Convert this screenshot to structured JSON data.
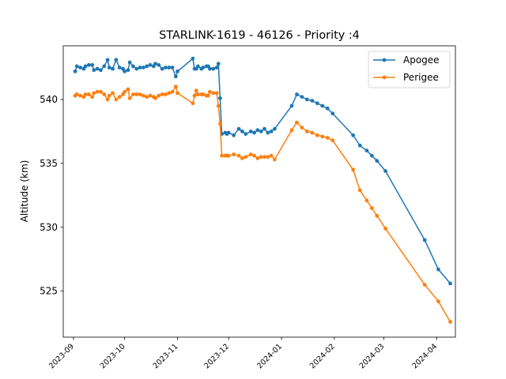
{
  "chart_data": {
    "type": "line",
    "title": "STARLINK-1619 - 46126 - Priority :4",
    "xlabel": "",
    "ylabel": "Altitude (km)",
    "xlim": [
      "2023-08-26",
      "2024-04-12"
    ],
    "ylim": [
      521.4,
      544.2
    ],
    "xticks": [
      "2023-09",
      "2023-10",
      "2023-11",
      "2023-12",
      "2024-01",
      "2024-02",
      "2024-03",
      "2024-04"
    ],
    "yticks": [
      525,
      530,
      535,
      540
    ],
    "grid": false,
    "legend_position": "top-right",
    "series": [
      {
        "name": "Apogee",
        "color": "#1f77b4",
        "points": [
          [
            "2023-09-02",
            542.2
          ],
          [
            "2023-09-03",
            542.6
          ],
          [
            "2023-09-05",
            542.5
          ],
          [
            "2023-09-07",
            542.4
          ],
          [
            "2023-09-08",
            542.6
          ],
          [
            "2023-09-10",
            542.7
          ],
          [
            "2023-09-12",
            542.7
          ],
          [
            "2023-09-13",
            542.3
          ],
          [
            "2023-09-15",
            542.4
          ],
          [
            "2023-09-17",
            542.3
          ],
          [
            "2023-09-19",
            542.6
          ],
          [
            "2023-09-21",
            543.1
          ],
          [
            "2023-09-22",
            542.5
          ],
          [
            "2023-09-24",
            542.4
          ],
          [
            "2023-09-26",
            543.1
          ],
          [
            "2023-09-28",
            542.5
          ],
          [
            "2023-09-30",
            542.4
          ],
          [
            "2023-10-01",
            542.2
          ],
          [
            "2023-10-03",
            542.3
          ],
          [
            "2023-10-04",
            542.9
          ],
          [
            "2023-10-06",
            542.6
          ],
          [
            "2023-10-08",
            542.4
          ],
          [
            "2023-10-10",
            542.5
          ],
          [
            "2023-10-12",
            542.5
          ],
          [
            "2023-10-14",
            542.6
          ],
          [
            "2023-10-16",
            542.7
          ],
          [
            "2023-10-18",
            542.6
          ],
          [
            "2023-10-19",
            542.8
          ],
          [
            "2023-10-21",
            542.7
          ],
          [
            "2023-10-23",
            542.4
          ],
          [
            "2023-10-25",
            542.5
          ],
          [
            "2023-10-27",
            542.5
          ],
          [
            "2023-10-29",
            542.5
          ],
          [
            "2023-10-31",
            541.8
          ],
          [
            "2023-11-01",
            542.2
          ],
          [
            "2023-11-10",
            543.2
          ],
          [
            "2023-11-11",
            542.4
          ],
          [
            "2023-11-12",
            542.4
          ],
          [
            "2023-11-13",
            542.6
          ],
          [
            "2023-11-15",
            542.4
          ],
          [
            "2023-11-16",
            542.5
          ],
          [
            "2023-11-18",
            542.6
          ],
          [
            "2023-11-19",
            542.6
          ],
          [
            "2023-11-20",
            542.4
          ],
          [
            "2023-11-22",
            542.4
          ],
          [
            "2023-11-24",
            542.5
          ],
          [
            "2023-11-25",
            542.8
          ],
          [
            "2023-11-26",
            540.1
          ],
          [
            "2023-11-27",
            537.3
          ],
          [
            "2023-11-29",
            537.4
          ],
          [
            "2023-11-30",
            537.3
          ],
          [
            "2023-12-01",
            537.4
          ],
          [
            "2023-12-04",
            537.2
          ],
          [
            "2023-12-07",
            537.7
          ],
          [
            "2023-12-09",
            537.5
          ],
          [
            "2023-12-11",
            537.3
          ],
          [
            "2023-12-14",
            537.5
          ],
          [
            "2023-12-16",
            537.4
          ],
          [
            "2023-12-18",
            537.6
          ],
          [
            "2023-12-20",
            537.5
          ],
          [
            "2023-12-22",
            537.7
          ],
          [
            "2023-12-24",
            537.4
          ],
          [
            "2023-12-26",
            537.5
          ],
          [
            "2023-12-28",
            537.7
          ],
          [
            "2024-01-07",
            539.5
          ],
          [
            "2024-01-10",
            540.4
          ],
          [
            "2024-01-13",
            540.2
          ],
          [
            "2024-01-16",
            540.0
          ],
          [
            "2024-01-19",
            539.9
          ],
          [
            "2024-01-22",
            539.7
          ],
          [
            "2024-01-25",
            539.5
          ],
          [
            "2024-01-28",
            539.3
          ],
          [
            "2024-01-31",
            538.9
          ],
          [
            "2024-02-12",
            537.2
          ],
          [
            "2024-02-16",
            536.4
          ],
          [
            "2024-02-20",
            536.0
          ],
          [
            "2024-02-23",
            535.6
          ],
          [
            "2024-02-26",
            535.2
          ],
          [
            "2024-03-02",
            534.4
          ],
          [
            "2024-03-25",
            529.0
          ],
          [
            "2024-04-02",
            526.7
          ],
          [
            "2024-04-09",
            525.6
          ]
        ]
      },
      {
        "name": "Perigee",
        "color": "#ff7f0e",
        "points": [
          [
            "2023-09-02",
            540.3
          ],
          [
            "2023-09-03",
            540.4
          ],
          [
            "2023-09-05",
            540.3
          ],
          [
            "2023-09-07",
            540.2
          ],
          [
            "2023-09-08",
            540.4
          ],
          [
            "2023-09-10",
            540.4
          ],
          [
            "2023-09-12",
            540.2
          ],
          [
            "2023-09-13",
            540.5
          ],
          [
            "2023-09-15",
            540.6
          ],
          [
            "2023-09-17",
            540.6
          ],
          [
            "2023-09-19",
            540.4
          ],
          [
            "2023-09-21",
            540.0
          ],
          [
            "2023-09-22",
            540.3
          ],
          [
            "2023-09-24",
            540.5
          ],
          [
            "2023-09-26",
            540.0
          ],
          [
            "2023-09-28",
            540.2
          ],
          [
            "2023-09-30",
            540.4
          ],
          [
            "2023-10-01",
            540.6
          ],
          [
            "2023-10-03",
            540.8
          ],
          [
            "2023-10-04",
            540.1
          ],
          [
            "2023-10-06",
            540.4
          ],
          [
            "2023-10-08",
            540.4
          ],
          [
            "2023-10-10",
            540.4
          ],
          [
            "2023-10-12",
            540.3
          ],
          [
            "2023-10-14",
            540.2
          ],
          [
            "2023-10-16",
            540.3
          ],
          [
            "2023-10-18",
            540.2
          ],
          [
            "2023-10-19",
            540.1
          ],
          [
            "2023-10-21",
            540.3
          ],
          [
            "2023-10-23",
            540.4
          ],
          [
            "2023-10-25",
            540.4
          ],
          [
            "2023-10-27",
            540.5
          ],
          [
            "2023-10-29",
            540.6
          ],
          [
            "2023-10-31",
            541.0
          ],
          [
            "2023-11-01",
            540.5
          ],
          [
            "2023-11-10",
            539.7
          ],
          [
            "2023-11-11",
            540.3
          ],
          [
            "2023-11-12",
            540.7
          ],
          [
            "2023-11-13",
            540.4
          ],
          [
            "2023-11-15",
            540.4
          ],
          [
            "2023-11-16",
            540.4
          ],
          [
            "2023-11-18",
            540.3
          ],
          [
            "2023-11-19",
            540.3
          ],
          [
            "2023-11-20",
            540.6
          ],
          [
            "2023-11-22",
            540.5
          ],
          [
            "2023-11-24",
            540.5
          ],
          [
            "2023-11-25",
            539.5
          ],
          [
            "2023-11-26",
            538.1
          ],
          [
            "2023-11-27",
            535.6
          ],
          [
            "2023-11-29",
            535.6
          ],
          [
            "2023-11-30",
            535.6
          ],
          [
            "2023-12-01",
            535.6
          ],
          [
            "2023-12-04",
            535.7
          ],
          [
            "2023-12-07",
            535.6
          ],
          [
            "2023-12-09",
            535.4
          ],
          [
            "2023-12-11",
            535.5
          ],
          [
            "2023-12-14",
            535.7
          ],
          [
            "2023-12-16",
            535.6
          ],
          [
            "2023-12-18",
            535.4
          ],
          [
            "2023-12-20",
            535.5
          ],
          [
            "2023-12-22",
            535.5
          ],
          [
            "2023-12-24",
            535.5
          ],
          [
            "2023-12-26",
            535.6
          ],
          [
            "2023-12-28",
            535.3
          ],
          [
            "2024-01-07",
            537.6
          ],
          [
            "2024-01-10",
            538.2
          ],
          [
            "2024-01-13",
            537.8
          ],
          [
            "2024-01-16",
            537.5
          ],
          [
            "2024-01-19",
            537.4
          ],
          [
            "2024-01-22",
            537.2
          ],
          [
            "2024-01-25",
            537.1
          ],
          [
            "2024-01-28",
            537.0
          ],
          [
            "2024-01-31",
            536.8
          ],
          [
            "2024-02-12",
            534.5
          ],
          [
            "2024-02-16",
            532.9
          ],
          [
            "2024-02-20",
            532.1
          ],
          [
            "2024-02-23",
            531.5
          ],
          [
            "2024-02-26",
            530.9
          ],
          [
            "2024-03-02",
            529.9
          ],
          [
            "2024-03-25",
            525.5
          ],
          [
            "2024-04-02",
            524.2
          ],
          [
            "2024-04-09",
            522.6
          ]
        ]
      }
    ]
  }
}
